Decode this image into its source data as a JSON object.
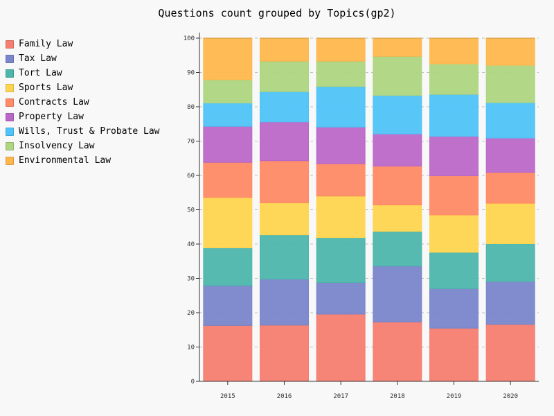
{
  "chart_data": {
    "type": "bar",
    "stacked": true,
    "title": "Questions count grouped by Topics(gp2)",
    "xlabel": "",
    "ylabel": "",
    "ylim": [
      0,
      100
    ],
    "yticks": [
      0,
      10,
      20,
      30,
      40,
      50,
      60,
      70,
      80,
      90,
      100
    ],
    "grid": true,
    "legend_position": "left",
    "categories": [
      "2015",
      "2016",
      "2017",
      "2018",
      "2019",
      "2020"
    ],
    "series": [
      {
        "name": "Family Law",
        "color": "#f57e70",
        "values": [
          16.3,
          16.4,
          19.6,
          17.3,
          15.5,
          16.6
        ]
      },
      {
        "name": "Tax Law",
        "color": "#7986cb",
        "values": [
          11.6,
          13.4,
          9.2,
          16.3,
          11.5,
          12.5
        ]
      },
      {
        "name": "Tort Law",
        "color": "#4db6ac",
        "values": [
          11.0,
          12.9,
          13.1,
          10.1,
          10.6,
          11.0
        ]
      },
      {
        "name": "Sports Law",
        "color": "#ffd54f",
        "values": [
          14.7,
          9.3,
          12.1,
          7.7,
          10.9,
          11.8
        ]
      },
      {
        "name": "Contracts Law",
        "color": "#ff8a65",
        "values": [
          10.2,
          12.3,
          9.4,
          11.3,
          11.4,
          9.0
        ]
      },
      {
        "name": "Property Law",
        "color": "#ba68c8",
        "values": [
          10.5,
          11.3,
          10.7,
          9.4,
          11.5,
          10.0
        ]
      },
      {
        "name": "Wills, Trust & Probate Law",
        "color": "#4fc3f7",
        "values": [
          6.8,
          8.8,
          11.8,
          11.2,
          12.2,
          10.3
        ]
      },
      {
        "name": "Insolvency Law",
        "color": "#aed581",
        "values": [
          6.8,
          8.9,
          7.4,
          11.4,
          8.9,
          10.9
        ]
      },
      {
        "name": "Environmental Law",
        "color": "#ffb74d",
        "values": [
          12.1,
          6.7,
          6.7,
          5.3,
          7.5,
          7.9
        ]
      }
    ]
  }
}
